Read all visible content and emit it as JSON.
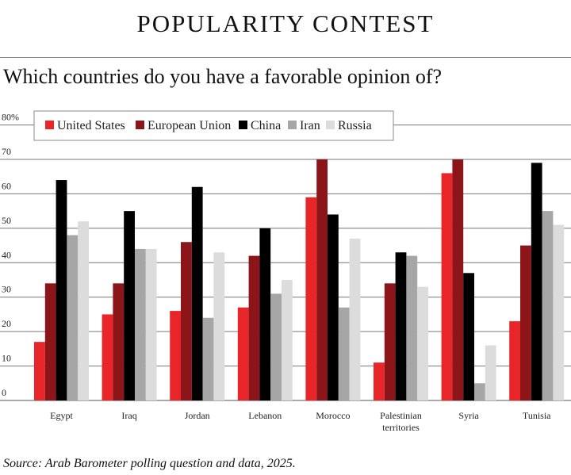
{
  "title": "POPULARITY CONTEST",
  "subtitle": "Which countries do you have a favorable opinion of?",
  "source": "Source: Arab Barometer polling question and data, 2025.",
  "chart_data": {
    "type": "bar",
    "title": "Which countries do you have a favorable opinion of?",
    "xlabel": "",
    "ylabel": "",
    "ylim": [
      0,
      80
    ],
    "yticks": [
      "0",
      "10",
      "20",
      "30",
      "40",
      "50",
      "60",
      "70",
      "80%"
    ],
    "grid": true,
    "legend_position": "top-left",
    "categories": [
      "Egypt",
      "Iraq",
      "Jordan",
      "Lebanon",
      "Morocco",
      "Palestinian territories",
      "Syria",
      "Tunisia"
    ],
    "series": [
      {
        "name": "United States",
        "color": "#e8262a",
        "values": [
          17,
          25,
          26,
          27,
          59,
          11,
          66,
          23
        ]
      },
      {
        "name": "European Union",
        "color": "#8b1519",
        "values": [
          34,
          34,
          46,
          42,
          70,
          34,
          70,
          45
        ]
      },
      {
        "name": "China",
        "color": "#000000",
        "values": [
          64,
          55,
          62,
          50,
          54,
          43,
          37,
          69
        ]
      },
      {
        "name": "Iran",
        "color": "#a6a6a6",
        "values": [
          48,
          44,
          24,
          31,
          27,
          42,
          5,
          55
        ]
      },
      {
        "name": "Russia",
        "color": "#dcdcdc",
        "values": [
          52,
          44,
          43,
          35,
          47,
          33,
          16,
          51
        ]
      }
    ]
  }
}
